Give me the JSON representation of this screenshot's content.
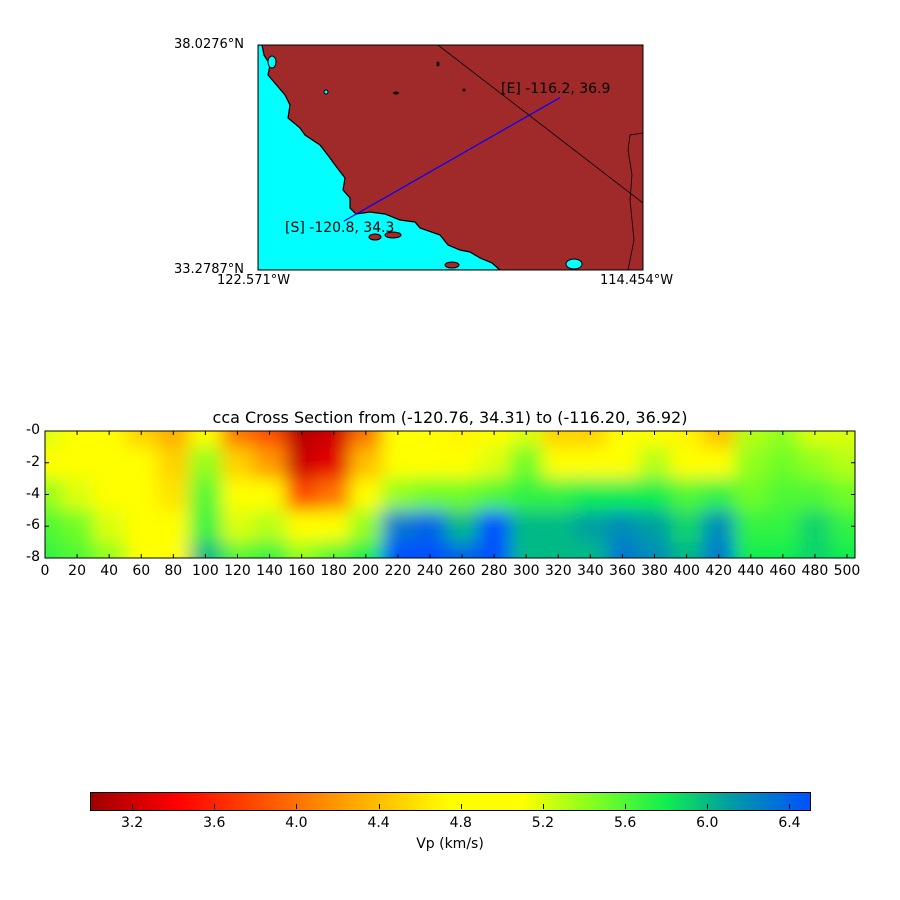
{
  "map": {
    "lat_top_label": "38.0276°N",
    "lat_bottom_label": "33.2787°N",
    "lon_left_label": "122.571°W",
    "lon_right_label": "114.454°W",
    "lon_range": [
      -122.571,
      -114.454
    ],
    "lat_range": [
      33.2787,
      38.0276
    ],
    "start": {
      "label": "[S] -120.8, 34.3",
      "lon": -120.76,
      "lat": 34.31
    },
    "end": {
      "label": "[E] -116.2, 36.9",
      "lon": -116.2,
      "lat": 36.92
    },
    "colors": {
      "land": "#a0292a",
      "ocean": "#00ffff",
      "transect": "#0000ff"
    }
  },
  "chart_data": {
    "type": "heatmap",
    "title": "cca Cross Section from (-120.76, 34.31) to (-116.20, 36.92)",
    "xlabel": "",
    "ylabel": "",
    "xlim": [
      0,
      505
    ],
    "ylim": [
      -8,
      0
    ],
    "xticks": [
      "0",
      "20",
      "40",
      "60",
      "80",
      "100",
      "120",
      "140",
      "160",
      "180",
      "200",
      "220",
      "240",
      "260",
      "280",
      "300",
      "320",
      "340",
      "360",
      "380",
      "400",
      "420",
      "440",
      "460",
      "480",
      "500"
    ],
    "yticks": [
      "-0",
      "-2",
      "-4",
      "-6",
      "-8"
    ],
    "x": [
      0,
      20,
      40,
      60,
      80,
      100,
      120,
      140,
      160,
      180,
      200,
      220,
      240,
      260,
      280,
      300,
      320,
      340,
      360,
      380,
      400,
      420,
      440,
      460,
      480,
      500
    ],
    "depths": [
      0,
      -2,
      -4,
      -6,
      -8
    ],
    "values": [
      [
        5.2,
        5.1,
        5.4,
        5.6,
        5.7
      ],
      [
        5.0,
        5.0,
        5.2,
        5.5,
        5.6
      ],
      [
        4.9,
        5.0,
        5.0,
        5.2,
        5.4
      ],
      [
        4.5,
        4.8,
        5.0,
        5.0,
        5.0
      ],
      [
        4.3,
        4.5,
        4.6,
        4.9,
        4.9
      ],
      [
        5.1,
        5.4,
        5.6,
        5.7,
        6.0
      ],
      [
        4.0,
        4.5,
        5.0,
        5.2,
        5.6
      ],
      [
        3.8,
        4.2,
        4.8,
        5.3,
        5.7
      ],
      [
        3.1,
        3.2,
        3.8,
        4.8,
        5.4
      ],
      [
        3.2,
        3.3,
        4.0,
        5.0,
        5.6
      ],
      [
        4.0,
        4.4,
        5.0,
        5.4,
        5.8
      ],
      [
        5.0,
        5.0,
        5.4,
        6.3,
        6.5
      ],
      [
        5.0,
        5.0,
        5.5,
        6.4,
        6.5
      ],
      [
        4.7,
        4.9,
        5.5,
        6.0,
        6.4
      ],
      [
        5.0,
        5.2,
        5.6,
        6.5,
        6.5
      ],
      [
        5.2,
        5.5,
        5.7,
        6.0,
        6.0
      ],
      [
        4.5,
        5.0,
        5.7,
        6.0,
        6.0
      ],
      [
        4.5,
        5.0,
        5.8,
        6.1,
        6.0
      ],
      [
        4.8,
        5.1,
        5.8,
        6.2,
        6.3
      ],
      [
        5.0,
        5.3,
        5.8,
        6.1,
        6.2
      ],
      [
        4.7,
        5.1,
        5.6,
        5.9,
        6.0
      ],
      [
        4.4,
        5.0,
        5.7,
        6.2,
        6.3
      ],
      [
        5.3,
        5.4,
        5.5,
        5.7,
        5.8
      ],
      [
        5.4,
        5.5,
        5.6,
        5.7,
        5.8
      ],
      [
        5.2,
        5.4,
        5.6,
        5.9,
        5.9
      ],
      [
        5.2,
        5.3,
        5.5,
        5.7,
        5.8
      ]
    ],
    "colorbar": {
      "label": "Vp (km/s)",
      "range": [
        3.0,
        6.5
      ],
      "ticks": [
        "3.2",
        "3.6",
        "4.0",
        "4.4",
        "4.8",
        "5.2",
        "5.6",
        "6.0",
        "6.4"
      ],
      "colormap": [
        [
          3.0,
          "#a00000"
        ],
        [
          3.42,
          "#ff0000"
        ],
        [
          4.2,
          "#ff9900"
        ],
        [
          4.75,
          "#ffff00"
        ],
        [
          5.1,
          "#ffff00"
        ],
        [
          5.45,
          "#80ff20"
        ],
        [
          5.8,
          "#10ee50"
        ],
        [
          6.1,
          "#00a0a0"
        ],
        [
          6.5,
          "#0050ff"
        ]
      ]
    }
  }
}
